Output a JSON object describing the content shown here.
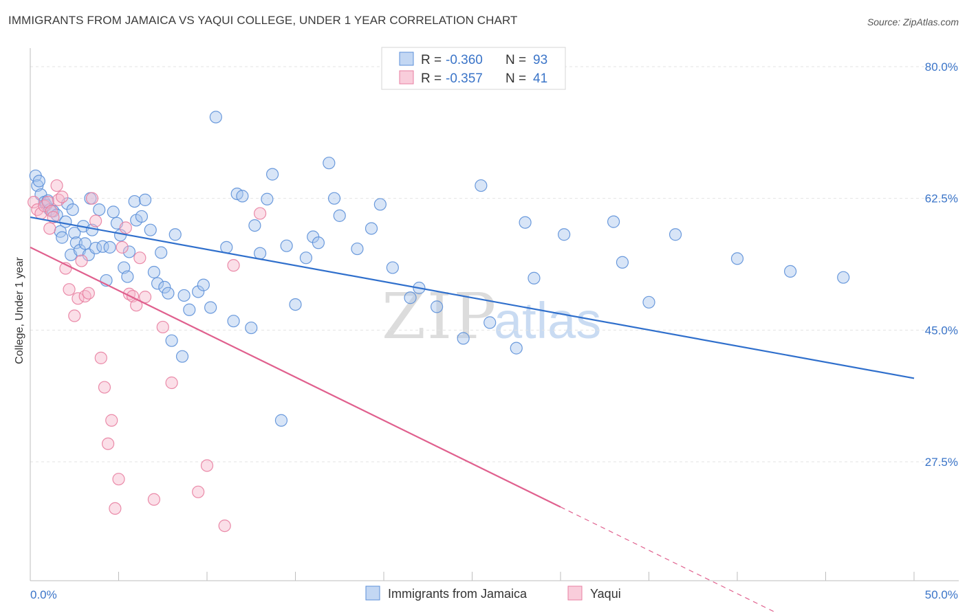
{
  "chart_data": {
    "type": "scatter",
    "title": "IMMIGRANTS FROM JAMAICA VS YAQUI COLLEGE, UNDER 1 YEAR CORRELATION CHART",
    "source": "Source: ZipAtlas.com",
    "watermark": {
      "zip": "ZIP",
      "atlas": "atlas"
    },
    "ylabel": "College, Under 1 year",
    "xlabel": "",
    "xlim": [
      0,
      50
    ],
    "ylim": [
      10,
      85
    ],
    "x_tick_labels": {
      "min": "0.0%",
      "max": "50.0%"
    },
    "y_ticks": [
      {
        "value": 80.0,
        "label": "80.0%"
      },
      {
        "value": 62.5,
        "label": "62.5%"
      },
      {
        "value": 45.0,
        "label": "45.0%"
      },
      {
        "value": 27.5,
        "label": "27.5%"
      }
    ],
    "grid": true,
    "legend": {
      "position": "top-center",
      "entries": [
        {
          "r_label": "R = ",
          "r_value": "-0.360",
          "n_label": "N = ",
          "n_value": "93"
        },
        {
          "r_label": "R = ",
          "r_value": "-0.357",
          "n_label": "N = ",
          "n_value": "41"
        }
      ]
    },
    "series": [
      {
        "name": "Immigrants from Jamaica",
        "color": "#5b8fd8",
        "fill": "#a9c6ee",
        "line_color": "#2f6fcc",
        "trend": {
          "x": [
            0,
            50
          ],
          "y": [
            60.0,
            38.6
          ]
        },
        "points": [
          [
            0.3,
            65.5
          ],
          [
            0.4,
            64.2
          ],
          [
            0.5,
            64.8
          ],
          [
            0.6,
            63.0
          ],
          [
            0.8,
            62.0
          ],
          [
            0.9,
            61.6
          ],
          [
            1.0,
            62.2
          ],
          [
            1.1,
            61.0
          ],
          [
            1.3,
            60.8
          ],
          [
            1.5,
            60.3
          ],
          [
            1.7,
            58.1
          ],
          [
            1.8,
            57.3
          ],
          [
            2.0,
            59.4
          ],
          [
            2.1,
            61.8
          ],
          [
            2.3,
            55.0
          ],
          [
            2.4,
            61.0
          ],
          [
            2.5,
            57.9
          ],
          [
            2.6,
            56.6
          ],
          [
            2.8,
            55.6
          ],
          [
            3.0,
            58.8
          ],
          [
            3.1,
            56.5
          ],
          [
            3.3,
            55.0
          ],
          [
            3.4,
            62.5
          ],
          [
            3.5,
            58.3
          ],
          [
            3.7,
            55.9
          ],
          [
            3.9,
            61.0
          ],
          [
            4.1,
            56.1
          ],
          [
            4.3,
            51.6
          ],
          [
            4.5,
            56.0
          ],
          [
            4.7,
            60.7
          ],
          [
            4.9,
            59.2
          ],
          [
            5.1,
            57.6
          ],
          [
            5.3,
            53.3
          ],
          [
            5.5,
            52.1
          ],
          [
            5.6,
            55.4
          ],
          [
            5.9,
            62.1
          ],
          [
            6.0,
            59.6
          ],
          [
            6.3,
            60.1
          ],
          [
            6.5,
            62.3
          ],
          [
            6.8,
            58.3
          ],
          [
            7.0,
            52.7
          ],
          [
            7.2,
            51.2
          ],
          [
            7.4,
            55.3
          ],
          [
            7.6,
            50.7
          ],
          [
            7.8,
            49.9
          ],
          [
            8.0,
            43.6
          ],
          [
            8.2,
            57.7
          ],
          [
            8.6,
            41.5
          ],
          [
            8.7,
            49.6
          ],
          [
            9.0,
            47.7
          ],
          [
            9.5,
            50.1
          ],
          [
            9.8,
            51.0
          ],
          [
            10.2,
            48.0
          ],
          [
            10.5,
            73.3
          ],
          [
            11.1,
            56.0
          ],
          [
            11.5,
            46.2
          ],
          [
            11.7,
            63.1
          ],
          [
            12.0,
            62.8
          ],
          [
            12.5,
            45.3
          ],
          [
            12.7,
            58.9
          ],
          [
            13.0,
            55.2
          ],
          [
            13.4,
            62.4
          ],
          [
            13.7,
            65.7
          ],
          [
            14.2,
            33.0
          ],
          [
            14.5,
            56.2
          ],
          [
            15.0,
            48.4
          ],
          [
            15.6,
            54.6
          ],
          [
            16.0,
            57.4
          ],
          [
            16.3,
            56.6
          ],
          [
            16.9,
            67.2
          ],
          [
            17.2,
            62.5
          ],
          [
            17.5,
            60.2
          ],
          [
            18.5,
            55.8
          ],
          [
            19.3,
            58.5
          ],
          [
            19.8,
            61.7
          ],
          [
            20.5,
            53.3
          ],
          [
            21.5,
            49.3
          ],
          [
            22.0,
            50.6
          ],
          [
            23.0,
            48.1
          ],
          [
            24.5,
            43.9
          ],
          [
            25.5,
            64.2
          ],
          [
            26.0,
            46.0
          ],
          [
            27.5,
            42.6
          ],
          [
            28.0,
            59.3
          ],
          [
            28.5,
            51.9
          ],
          [
            30.2,
            57.7
          ],
          [
            33.0,
            59.4
          ],
          [
            33.5,
            54.0
          ],
          [
            35.0,
            48.7
          ],
          [
            36.5,
            57.7
          ],
          [
            40.0,
            54.5
          ],
          [
            43.0,
            52.8
          ],
          [
            46.0,
            52.0
          ]
        ]
      },
      {
        "name": "Yaqui",
        "color": "#e87ea0",
        "fill": "#f6b8cc",
        "line_color": "#e0608e",
        "trend": {
          "x": [
            0,
            30
          ],
          "y": [
            56.0,
            21.5
          ]
        },
        "trend_dashed": {
          "x": [
            30,
            44.5
          ],
          "y": [
            21.5,
            4.8
          ]
        },
        "points": [
          [
            0.2,
            62.0
          ],
          [
            0.4,
            61.0
          ],
          [
            0.6,
            60.5
          ],
          [
            0.8,
            61.5
          ],
          [
            1.0,
            62.0
          ],
          [
            1.1,
            58.5
          ],
          [
            1.2,
            60.8
          ],
          [
            1.3,
            60.0
          ],
          [
            1.5,
            64.2
          ],
          [
            1.6,
            62.3
          ],
          [
            1.8,
            62.7
          ],
          [
            2.0,
            53.2
          ],
          [
            2.2,
            50.4
          ],
          [
            2.5,
            46.9
          ],
          [
            2.7,
            49.2
          ],
          [
            2.9,
            54.2
          ],
          [
            3.1,
            49.5
          ],
          [
            3.3,
            49.9
          ],
          [
            3.5,
            62.5
          ],
          [
            3.7,
            59.5
          ],
          [
            4.0,
            41.3
          ],
          [
            4.2,
            37.4
          ],
          [
            4.4,
            29.9
          ],
          [
            4.6,
            33.0
          ],
          [
            4.8,
            21.3
          ],
          [
            5.0,
            25.2
          ],
          [
            5.2,
            56.0
          ],
          [
            5.4,
            58.6
          ],
          [
            5.6,
            49.8
          ],
          [
            5.8,
            49.5
          ],
          [
            6.0,
            48.3
          ],
          [
            6.2,
            54.6
          ],
          [
            6.5,
            49.4
          ],
          [
            7.0,
            22.5
          ],
          [
            7.5,
            45.4
          ],
          [
            8.0,
            38.0
          ],
          [
            9.5,
            23.5
          ],
          [
            10.0,
            27.0
          ],
          [
            11.0,
            19.0
          ],
          [
            11.5,
            53.6
          ],
          [
            13.0,
            60.5
          ]
        ]
      }
    ]
  }
}
